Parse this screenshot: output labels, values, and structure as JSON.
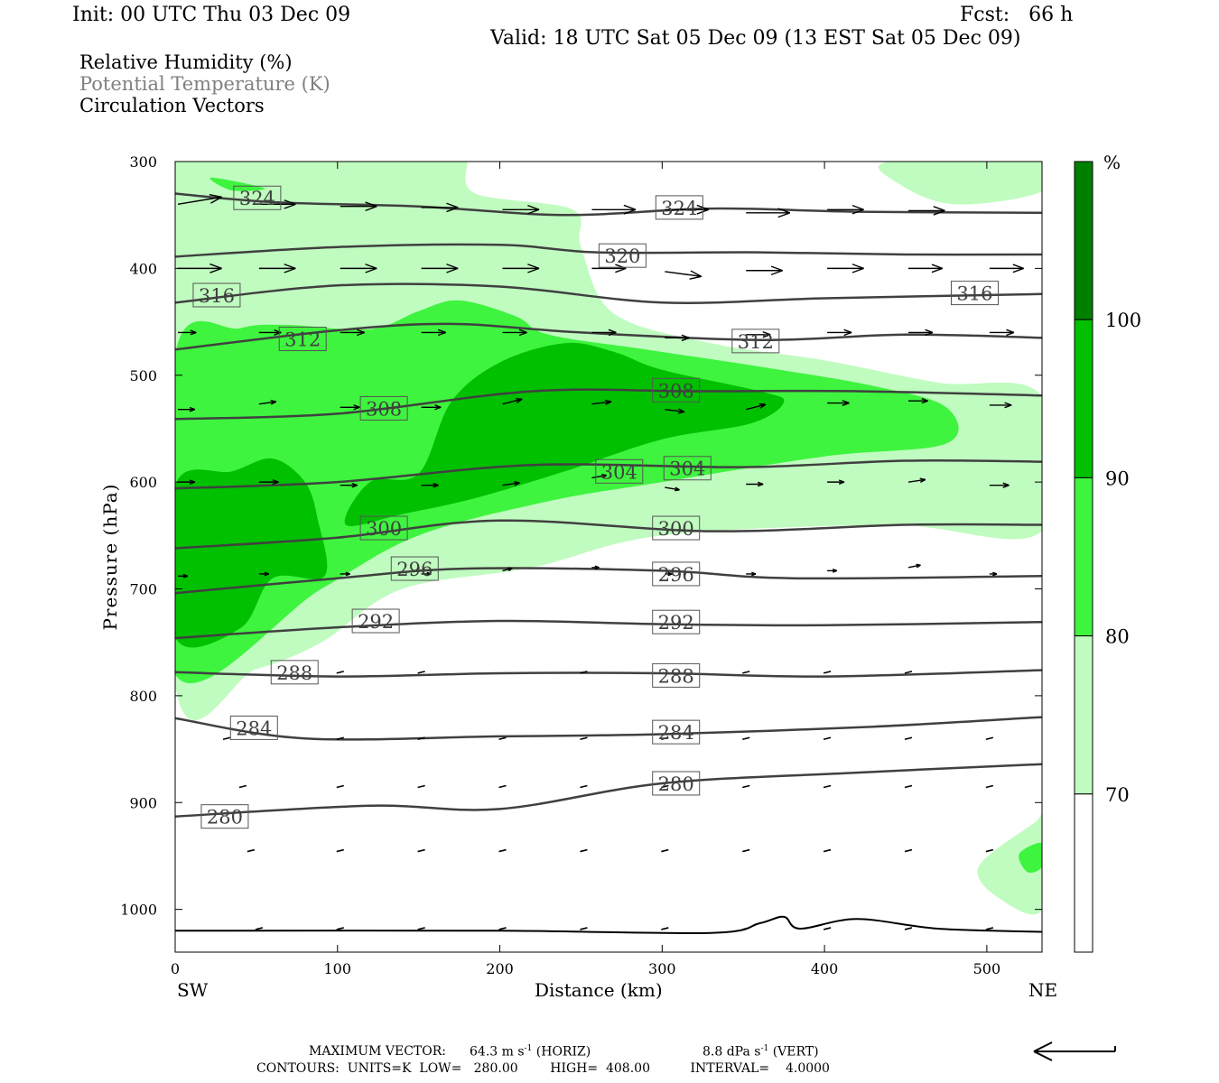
{
  "header": {
    "init": "Init: 00 UTC Thu 03 Dec 09",
    "fcst": "Fcst:   66 h",
    "valid": "Valid: 18 UTC Sat 05 Dec 09 (13 EST Sat 05 Dec 09)"
  },
  "legend": {
    "rh": "Relative Humidity (%)",
    "theta": "Potential Temperature (K)",
    "vectors": "Circulation Vectors"
  },
  "footer": {
    "maxvec_label": "MAXIMUM VECTOR:",
    "maxvec_horiz": "64.3 m s",
    "horiz_tag": "(HORIZ)",
    "maxvec_vert": "8.8 dPa s",
    "vert_tag": "(VERT)",
    "exp": "-1",
    "contours": "CONTOURS:  UNITS=K  LOW=   280.00        HIGH=  408.00          INTERVAL=    4.0000"
  },
  "colors": {
    "rh_70": "#c0fcc0",
    "rh_80": "#3ef43e",
    "rh_90": "#00c000",
    "rh_100": "#008000",
    "contour": "#404040",
    "label_theta_gray": "#808080"
  },
  "chart_data": {
    "type": "contour",
    "xlabel": "Distance (km)",
    "ylabel": "Pressure (hPa)",
    "x_ticks": [
      0,
      100,
      200,
      300,
      400,
      500
    ],
    "y_ticks": [
      300,
      400,
      500,
      600,
      700,
      800,
      900,
      1000
    ],
    "xlim": [
      0,
      534
    ],
    "ylim": [
      300,
      1040
    ],
    "y_reversed": true,
    "left_end": "SW",
    "right_end": "NE",
    "colorbar": {
      "unit": "%",
      "levels": [
        70,
        80,
        90,
        100
      ],
      "labels": [
        "70",
        "80",
        "90",
        "100"
      ]
    },
    "theta_contours": [
      {
        "theta": 324,
        "points": [
          [
            0,
            330
          ],
          [
            60,
            338
          ],
          [
            150,
            342
          ],
          [
            240,
            350
          ],
          [
            330,
            344
          ],
          [
            420,
            347
          ],
          [
            534,
            348
          ]
        ],
        "labels": [
          [
            50,
            334
          ],
          [
            310,
            343
          ]
        ]
      },
      {
        "theta": 320,
        "points": [
          [
            0,
            389
          ],
          [
            100,
            380
          ],
          [
            200,
            378
          ],
          [
            260,
            385
          ],
          [
            360,
            385
          ],
          [
            450,
            387
          ],
          [
            534,
            387
          ]
        ],
        "labels": [
          [
            275,
            388
          ]
        ]
      },
      {
        "theta": 316,
        "points": [
          [
            0,
            432
          ],
          [
            100,
            416
          ],
          [
            200,
            417
          ],
          [
            300,
            432
          ],
          [
            400,
            428
          ],
          [
            534,
            424
          ]
        ],
        "labels": [
          [
            25,
            425
          ],
          [
            492,
            423
          ]
        ]
      },
      {
        "theta": 312,
        "points": [
          [
            0,
            476
          ],
          [
            100,
            458
          ],
          [
            170,
            452
          ],
          [
            250,
            460
          ],
          [
            360,
            467
          ],
          [
            450,
            462
          ],
          [
            534,
            465
          ]
        ],
        "labels": [
          [
            78,
            466
          ],
          [
            357,
            468
          ]
        ]
      },
      {
        "theta": 308,
        "points": [
          [
            0,
            541
          ],
          [
            100,
            536
          ],
          [
            220,
            515
          ],
          [
            320,
            515
          ],
          [
            420,
            515
          ],
          [
            534,
            519
          ]
        ],
        "labels": [
          [
            128,
            531
          ],
          [
            308,
            514
          ]
        ]
      },
      {
        "theta": 304,
        "points": [
          [
            0,
            606
          ],
          [
            100,
            600
          ],
          [
            220,
            584
          ],
          [
            350,
            586
          ],
          [
            450,
            580
          ],
          [
            534,
            581
          ]
        ],
        "labels": [
          [
            273,
            590
          ],
          [
            315,
            587
          ]
        ]
      },
      {
        "theta": 300,
        "points": [
          [
            0,
            662
          ],
          [
            100,
            652
          ],
          [
            200,
            636
          ],
          [
            330,
            646
          ],
          [
            450,
            640
          ],
          [
            534,
            640
          ]
        ],
        "labels": [
          [
            128,
            643
          ],
          [
            308,
            643
          ]
        ]
      },
      {
        "theta": 296,
        "points": [
          [
            0,
            704
          ],
          [
            100,
            690
          ],
          [
            180,
            681
          ],
          [
            300,
            683
          ],
          [
            380,
            690
          ],
          [
            534,
            688
          ]
        ],
        "labels": [
          [
            147,
            681
          ],
          [
            308,
            686
          ]
        ]
      },
      {
        "theta": 292,
        "points": [
          [
            0,
            746
          ],
          [
            100,
            736
          ],
          [
            200,
            730
          ],
          [
            300,
            733
          ],
          [
            400,
            734
          ],
          [
            534,
            731
          ]
        ],
        "labels": [
          [
            123,
            730
          ],
          [
            308,
            731
          ]
        ]
      },
      {
        "theta": 288,
        "points": [
          [
            0,
            778
          ],
          [
            100,
            782
          ],
          [
            200,
            779
          ],
          [
            300,
            779
          ],
          [
            400,
            782
          ],
          [
            534,
            776
          ]
        ],
        "labels": [
          [
            73,
            778
          ],
          [
            308,
            781
          ]
        ]
      },
      {
        "theta": 284,
        "points": [
          [
            0,
            821
          ],
          [
            80,
            840
          ],
          [
            200,
            838
          ],
          [
            300,
            836
          ],
          [
            430,
            829
          ],
          [
            534,
            820
          ]
        ],
        "labels": [
          [
            48,
            830
          ],
          [
            308,
            834
          ]
        ]
      },
      {
        "theta": 280,
        "points": [
          [
            0,
            913
          ],
          [
            120,
            903
          ],
          [
            200,
            906
          ],
          [
            300,
            882
          ],
          [
            420,
            872
          ],
          [
            534,
            864
          ]
        ],
        "labels": [
          [
            30,
            913
          ],
          [
            308,
            882
          ]
        ]
      },
      {
        "theta": 0,
        "points": [
          [
            0,
            1020
          ],
          [
            200,
            1020
          ],
          [
            330,
            1022
          ],
          [
            360,
            1013
          ],
          [
            375,
            1007
          ],
          [
            385,
            1018
          ],
          [
            420,
            1009
          ],
          [
            470,
            1018
          ],
          [
            534,
            1021
          ]
        ],
        "labels": []
      }
    ],
    "rh_regions": [
      {
        "level": 70,
        "points": [
          [
            0,
            300
          ],
          [
            180,
            300
          ],
          [
            180,
            300
          ],
          [
            185,
            330
          ],
          [
            245,
            345
          ],
          [
            250,
            380
          ],
          [
            270,
            442
          ],
          [
            330,
            470
          ],
          [
            400,
            486
          ],
          [
            470,
            507
          ],
          [
            534,
            520
          ],
          [
            534,
            646
          ],
          [
            440,
            640
          ],
          [
            300,
            650
          ],
          [
            220,
            680
          ],
          [
            140,
            700
          ],
          [
            90,
            750
          ],
          [
            50,
            775
          ],
          [
            0,
            790
          ]
        ]
      },
      {
        "level": 70,
        "points": [
          [
            440,
            300
          ],
          [
            534,
            300
          ],
          [
            534,
            328
          ],
          [
            480,
            340
          ],
          [
            445,
            320
          ]
        ]
      },
      {
        "level": 70,
        "points": [
          [
            495,
            960
          ],
          [
            530,
            918
          ],
          [
            534,
            912
          ],
          [
            534,
            1000
          ],
          [
            508,
            990
          ]
        ]
      },
      {
        "level": 80,
        "points": [
          [
            22,
            315
          ],
          [
            55,
            325
          ],
          [
            35,
            327
          ]
        ]
      },
      {
        "level": 80,
        "points": [
          [
            0,
            480
          ],
          [
            40,
            456
          ],
          [
            70,
            453
          ],
          [
            120,
            457
          ],
          [
            150,
            440
          ],
          [
            175,
            430
          ],
          [
            210,
            445
          ],
          [
            230,
            462
          ],
          [
            290,
            476
          ],
          [
            360,
            492
          ],
          [
            430,
            510
          ],
          [
            475,
            530
          ],
          [
            475,
            564
          ],
          [
            400,
            576
          ],
          [
            300,
            600
          ],
          [
            230,
            618
          ],
          [
            150,
            650
          ],
          [
            90,
            700
          ],
          [
            0,
            780
          ]
        ]
      },
      {
        "level": 80,
        "points": [
          [
            520,
            948
          ],
          [
            534,
            938
          ],
          [
            534,
            960
          ],
          [
            525,
            965
          ]
        ]
      },
      {
        "level": 90,
        "points": [
          [
            0,
            603
          ],
          [
            35,
            590
          ],
          [
            60,
            578
          ],
          [
            80,
            600
          ],
          [
            88,
            636
          ],
          [
            92,
            688
          ],
          [
            60,
            690
          ],
          [
            40,
            737
          ],
          [
            0,
            745
          ]
        ]
      },
      {
        "level": 90,
        "points": [
          [
            105,
            640
          ],
          [
            120,
            600
          ],
          [
            150,
            592
          ],
          [
            170,
            525
          ],
          [
            200,
            488
          ],
          [
            240,
            470
          ],
          [
            270,
            478
          ],
          [
            300,
            495
          ],
          [
            360,
            515
          ],
          [
            375,
            525
          ],
          [
            355,
            545
          ],
          [
            300,
            560
          ],
          [
            240,
            590
          ],
          [
            185,
            615
          ],
          [
            140,
            630
          ]
        ]
      }
    ],
    "vectors": [
      {
        "x": 0,
        "p": 340,
        "u": 36,
        "w": -3
      },
      {
        "x": 50,
        "p": 340,
        "u": 30,
        "w": 0
      },
      {
        "x": 100,
        "p": 342,
        "u": 30,
        "w": 0
      },
      {
        "x": 150,
        "p": 343,
        "u": 30,
        "w": 0
      },
      {
        "x": 200,
        "p": 345,
        "u": 30,
        "w": 0
      },
      {
        "x": 255,
        "p": 345,
        "u": 36,
        "w": 0
      },
      {
        "x": 300,
        "p": 345,
        "u": 36,
        "w": 0
      },
      {
        "x": 350,
        "p": 348,
        "u": 36,
        "w": 0
      },
      {
        "x": 400,
        "p": 345,
        "u": 30,
        "w": 0
      },
      {
        "x": 450,
        "p": 346,
        "u": 30,
        "w": 0
      },
      {
        "x": 0,
        "p": 400,
        "u": 36,
        "w": 0
      },
      {
        "x": 50,
        "p": 400,
        "u": 30,
        "w": 0
      },
      {
        "x": 100,
        "p": 400,
        "u": 30,
        "w": 0
      },
      {
        "x": 150,
        "p": 400,
        "u": 30,
        "w": 0
      },
      {
        "x": 200,
        "p": 400,
        "u": 30,
        "w": 0
      },
      {
        "x": 255,
        "p": 400,
        "u": 28,
        "w": 0
      },
      {
        "x": 300,
        "p": 403,
        "u": 30,
        "w": 2
      },
      {
        "x": 350,
        "p": 402,
        "u": 30,
        "w": 0
      },
      {
        "x": 400,
        "p": 400,
        "u": 30,
        "w": 0
      },
      {
        "x": 450,
        "p": 400,
        "u": 28,
        "w": 0
      },
      {
        "x": 500,
        "p": 400,
        "u": 28,
        "w": 0
      },
      {
        "x": 0,
        "p": 460,
        "u": 15,
        "w": 0
      },
      {
        "x": 50,
        "p": 460,
        "u": 18,
        "w": 0
      },
      {
        "x": 100,
        "p": 460,
        "u": 20,
        "w": 0
      },
      {
        "x": 150,
        "p": 460,
        "u": 20,
        "w": 0
      },
      {
        "x": 200,
        "p": 460,
        "u": 20,
        "w": 0
      },
      {
        "x": 255,
        "p": 460,
        "u": 20,
        "w": 0
      },
      {
        "x": 300,
        "p": 465,
        "u": 20,
        "w": 0
      },
      {
        "x": 350,
        "p": 462,
        "u": 20,
        "w": 0
      },
      {
        "x": 400,
        "p": 460,
        "u": 20,
        "w": 0
      },
      {
        "x": 450,
        "p": 460,
        "u": 20,
        "w": 0
      },
      {
        "x": 500,
        "p": 460,
        "u": 20,
        "w": 0
      },
      {
        "x": 0,
        "p": 532,
        "u": 14,
        "w": 0
      },
      {
        "x": 50,
        "p": 527,
        "u": 14,
        "w": -1
      },
      {
        "x": 100,
        "p": 530,
        "u": 16,
        "w": 0
      },
      {
        "x": 150,
        "p": 530,
        "u": 16,
        "w": 0
      },
      {
        "x": 200,
        "p": 527,
        "u": 16,
        "w": -2
      },
      {
        "x": 255,
        "p": 527,
        "u": 16,
        "w": -1
      },
      {
        "x": 300,
        "p": 532,
        "u": 16,
        "w": 1
      },
      {
        "x": 350,
        "p": 532,
        "u": 16,
        "w": -2
      },
      {
        "x": 400,
        "p": 526,
        "u": 18,
        "w": 0
      },
      {
        "x": 450,
        "p": 524,
        "u": 16,
        "w": 0
      },
      {
        "x": 500,
        "p": 528,
        "u": 18,
        "w": 0
      },
      {
        "x": 0,
        "p": 600,
        "u": 14,
        "w": 0
      },
      {
        "x": 50,
        "p": 600,
        "u": 16,
        "w": 0
      },
      {
        "x": 100,
        "p": 603,
        "u": 14,
        "w": 0
      },
      {
        "x": 150,
        "p": 603,
        "u": 14,
        "w": 0
      },
      {
        "x": 200,
        "p": 603,
        "u": 14,
        "w": -1
      },
      {
        "x": 255,
        "p": 596,
        "u": 12,
        "w": -1
      },
      {
        "x": 300,
        "p": 605,
        "u": 12,
        "w": 1
      },
      {
        "x": 350,
        "p": 602,
        "u": 14,
        "w": 0
      },
      {
        "x": 400,
        "p": 600,
        "u": 14,
        "w": 0
      },
      {
        "x": 450,
        "p": 600,
        "u": 14,
        "w": -1
      },
      {
        "x": 500,
        "p": 603,
        "u": 16,
        "w": 0
      },
      {
        "x": 0,
        "p": 688,
        "u": 8,
        "w": 0
      },
      {
        "x": 50,
        "p": 686,
        "u": 8,
        "w": 0
      },
      {
        "x": 100,
        "p": 686,
        "u": 8,
        "w": 0
      },
      {
        "x": 150,
        "p": 686,
        "u": 8,
        "w": 0
      },
      {
        "x": 200,
        "p": 683,
        "u": 8,
        "w": -1
      },
      {
        "x": 255,
        "p": 680,
        "u": 6,
        "w": 0
      },
      {
        "x": 300,
        "p": 686,
        "u": 6,
        "w": 0
      },
      {
        "x": 350,
        "p": 686,
        "u": 8,
        "w": 0
      },
      {
        "x": 400,
        "p": 683,
        "u": 8,
        "w": 0
      },
      {
        "x": 450,
        "p": 680,
        "u": 10,
        "w": -1
      },
      {
        "x": 500,
        "p": 686,
        "u": 6,
        "w": 0
      }
    ],
    "isolines_labels_note": "",
    "title": ""
  }
}
